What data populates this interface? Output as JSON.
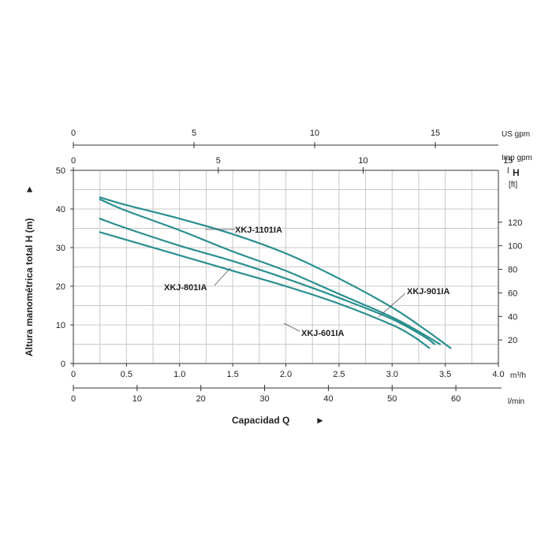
{
  "chart_data": {
    "type": "line",
    "xlabel": "Capacidad  Q",
    "ylabel": "Altura manométrica total H  (m)",
    "xlim": [
      0,
      4.0
    ],
    "ylim": [
      0,
      50
    ],
    "grid": true,
    "x_ticks": [
      "0",
      "0.5",
      "1.0",
      "1.5",
      "2.0",
      "2.5",
      "3.0",
      "3.5",
      "4.0"
    ],
    "x_unit": "m³/h",
    "y_ticks": [
      "0",
      "10",
      "20",
      "30",
      "40",
      "50"
    ],
    "secondary_axes": {
      "us_gpm": {
        "label": "US gpm",
        "ticks": [
          "0",
          "5",
          "10",
          "15"
        ]
      },
      "imp_gpm": {
        "label": "Imp gpm",
        "ticks": [
          "0",
          "5",
          "10",
          "15"
        ]
      },
      "l_min": {
        "label": "l/min",
        "ticks": [
          "0",
          "10",
          "20",
          "30",
          "40",
          "50",
          "60"
        ]
      },
      "h_ft": {
        "label_top": "H",
        "label_unit": "[ft]",
        "ticks": [
          "20",
          "40",
          "60",
          "80",
          "100",
          "120"
        ]
      }
    },
    "series": [
      {
        "name": "XKJ-1101IA",
        "x": [
          0.25,
          0.5,
          1.0,
          1.5,
          2.0,
          2.5,
          3.0,
          3.3,
          3.55
        ],
        "y": [
          43,
          41,
          37.5,
          33.5,
          28.5,
          22,
          14.5,
          9,
          4
        ]
      },
      {
        "name": "XKJ-901IA",
        "x": [
          0.25,
          0.5,
          1.0,
          1.5,
          2.0,
          2.5,
          3.0,
          3.3,
          3.45
        ],
        "y": [
          42.5,
          39.5,
          34.5,
          29,
          24,
          18,
          12,
          7.5,
          5
        ]
      },
      {
        "name": "XKJ-801IA",
        "x": [
          0.25,
          0.5,
          1.0,
          1.5,
          2.0,
          2.5,
          3.0,
          3.3,
          3.4
        ],
        "y": [
          37.5,
          35,
          30.5,
          26.5,
          22,
          17,
          11.5,
          7,
          5
        ]
      },
      {
        "name": "XKJ-601IA",
        "x": [
          0.25,
          0.5,
          1.0,
          1.5,
          2.0,
          2.5,
          3.0,
          3.2,
          3.35
        ],
        "y": [
          34,
          32,
          28,
          24,
          20,
          15.5,
          10,
          7,
          4
        ]
      }
    ]
  }
}
